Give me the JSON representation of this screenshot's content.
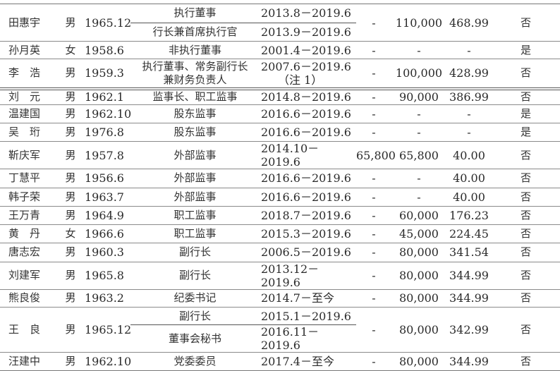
{
  "rows": [
    {
      "name": "田惠宇",
      "gender": "男",
      "birth": "1965.12",
      "roles": [
        {
          "title": "执行董事",
          "period": "2013.8－2019.6"
        },
        {
          "title": "行长兼首席执行官",
          "period": "2013.9－2019.6"
        }
      ],
      "col6": "-",
      "col7": "110,000",
      "col8": "468.99",
      "col9": "否"
    },
    {
      "name": "孙月英",
      "gender": "女",
      "birth": "1958.6",
      "roles": [
        {
          "title": "非执行董事",
          "period": "2001.4－2019.6"
        }
      ],
      "col6": "-",
      "col7": "-",
      "col8": "-",
      "col9": "是"
    },
    {
      "name": "李　浩",
      "gender": "男",
      "birth": "1959.3",
      "roles": [
        {
          "title": "执行董事、常务副行长\n兼财务负责人",
          "period": "2007.6－2019.6\n　　（注 1）"
        }
      ],
      "col6": "-",
      "col7": "100,000",
      "col8": "428.99",
      "col9": "否"
    },
    {
      "name": "刘　元",
      "gender": "男",
      "birth": "1962.1",
      "roles": [
        {
          "title": "监事长、职工监事",
          "period": "2014.8－2019.6"
        }
      ],
      "col6": "-",
      "col7": "90,000",
      "col8": "386.99",
      "col9": "否"
    },
    {
      "name": "温建国",
      "gender": "男",
      "birth": "1962.10",
      "roles": [
        {
          "title": "股东监事",
          "period": "2016.6－2019.6"
        }
      ],
      "col6": "-",
      "col7": "-",
      "col8": "-",
      "col9": "是"
    },
    {
      "name": "吴　珩",
      "gender": "男",
      "birth": "1976.8",
      "roles": [
        {
          "title": "股东监事",
          "period": "2016.6－2019.6"
        }
      ],
      "col6": "-",
      "col7": "-",
      "col8": "-",
      "col9": "是"
    },
    {
      "name": "靳庆军",
      "gender": "男",
      "birth": "1957.8",
      "roles": [
        {
          "title": "外部监事",
          "period": "2014.10－2019.6"
        }
      ],
      "col6": "65,800",
      "col7": "65,800",
      "col8": "40.00",
      "col9": "否"
    },
    {
      "name": "丁慧平",
      "gender": "男",
      "birth": "1956.6",
      "roles": [
        {
          "title": "外部监事",
          "period": "2016.6－2019.6"
        }
      ],
      "col6": "-",
      "col7": "-",
      "col8": "40.00",
      "col9": "否"
    },
    {
      "name": "韩子荣",
      "gender": "男",
      "birth": "1963.7",
      "roles": [
        {
          "title": "外部监事",
          "period": "2016.6－2019.6"
        }
      ],
      "col6": "-",
      "col7": "-",
      "col8": "40.00",
      "col9": "否"
    },
    {
      "name": "王万青",
      "gender": "男",
      "birth": "1964.9",
      "roles": [
        {
          "title": "职工监事",
          "period": "2018.7－2019.6"
        }
      ],
      "col6": "-",
      "col7": "60,000",
      "col8": "176.23",
      "col9": "否"
    },
    {
      "name": "黄　丹",
      "gender": "女",
      "birth": "1966.6",
      "roles": [
        {
          "title": "职工监事",
          "period": "2015.3－2019.6"
        }
      ],
      "col6": "-",
      "col7": "45,000",
      "col8": "224.45",
      "col9": "否"
    },
    {
      "name": "唐志宏",
      "gender": "男",
      "birth": "1960.3",
      "roles": [
        {
          "title": "副行长",
          "period": "2006.5－2019.6"
        }
      ],
      "col6": "-",
      "col7": "80,000",
      "col8": "341.54",
      "col9": "否"
    },
    {
      "name": "刘建军",
      "gender": "男",
      "birth": "1965.8",
      "roles": [
        {
          "title": "副行长",
          "period": "2013.12－2019.6"
        }
      ],
      "col6": "-",
      "col7": "80,000",
      "col8": "344.99",
      "col9": "否"
    },
    {
      "name": "熊良俊",
      "gender": "男",
      "birth": "1963.2",
      "roles": [
        {
          "title": "纪委书记",
          "period": "2014.7－至今"
        }
      ],
      "col6": "-",
      "col7": "80,000",
      "col8": "344.99",
      "col9": "否"
    },
    {
      "name": "王　良",
      "gender": "男",
      "birth": "1965.12",
      "roles": [
        {
          "title": "副行长",
          "period": "2015.1－2019.6"
        },
        {
          "title": "董事会秘书",
          "period": "2016.11－2019.6"
        }
      ],
      "col6": "-",
      "col7": "80,000",
      "col8": "342.99",
      "col9": "否"
    },
    {
      "name": "汪建中",
      "gender": "男",
      "birth": "1962.10",
      "roles": [
        {
          "title": "党委委员",
          "period": "2017.4－至今"
        }
      ],
      "col6": "-",
      "col7": "80,000",
      "col8": "344.99",
      "col9": "否"
    }
  ]
}
